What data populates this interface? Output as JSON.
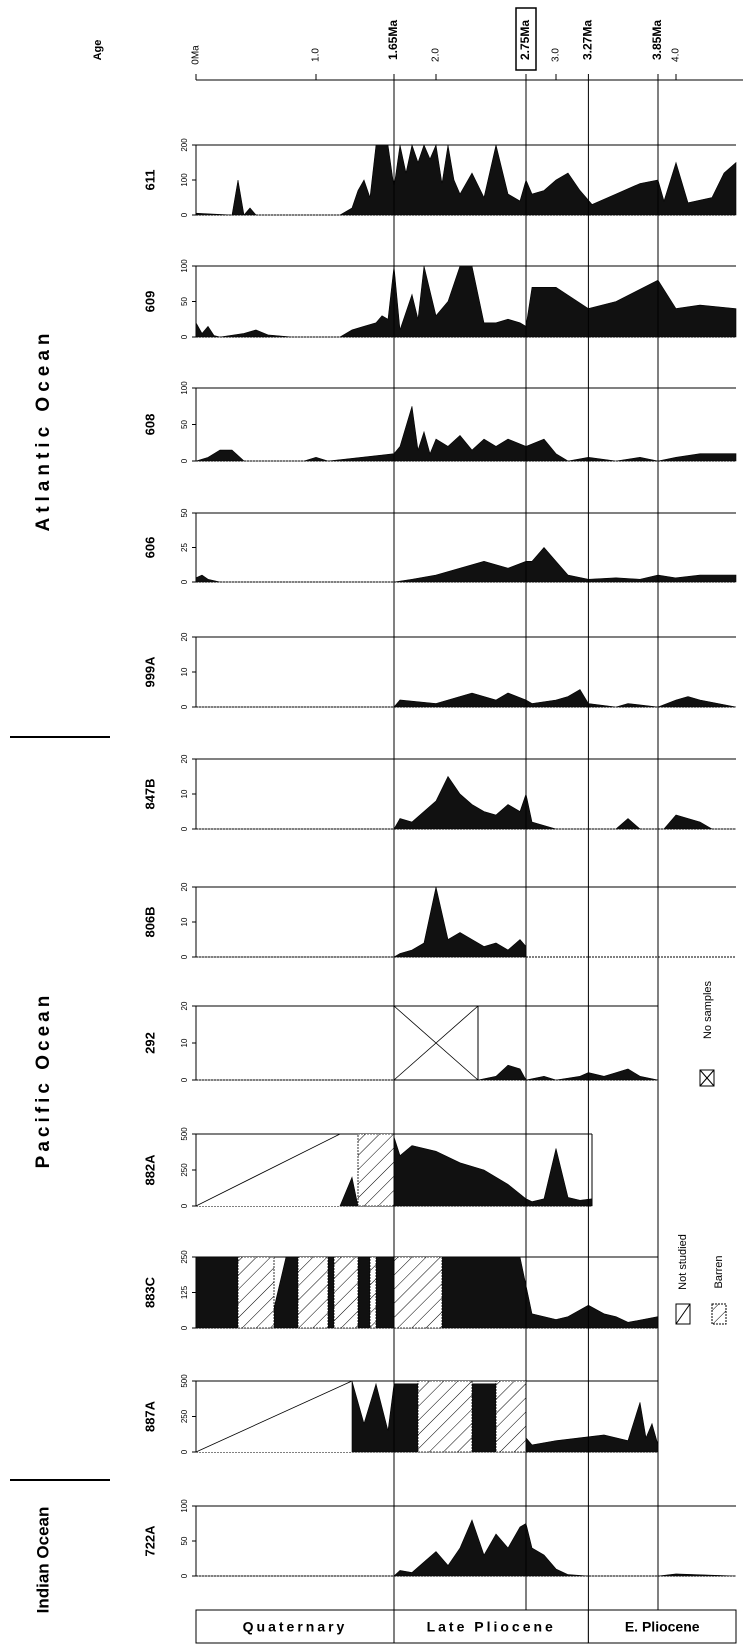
{
  "chart_data": {
    "type": "area",
    "age_axis": {
      "title": "Age",
      "ticks": [
        {
          "value": 0,
          "label": "0Ma"
        },
        {
          "value": 1.0,
          "label": "1.0"
        },
        {
          "value": 1.65,
          "label": "1.65Ma"
        },
        {
          "value": 2.0,
          "label": "2.0"
        },
        {
          "value": 2.75,
          "label": "2.75Ma",
          "boxed": true
        },
        {
          "value": 3.0,
          "label": "3.0"
        },
        {
          "value": 3.27,
          "label": "3.27Ma"
        },
        {
          "value": 3.85,
          "label": "3.85Ma"
        },
        {
          "value": 4.0,
          "label": "4.0"
        }
      ],
      "range": [
        0,
        4.5
      ],
      "boundaries": [
        1.65,
        2.75,
        3.27,
        3.85
      ]
    },
    "oceans": [
      {
        "name": "Atlantic Ocean",
        "sites": [
          "611",
          "609",
          "608",
          "606",
          "999A"
        ]
      },
      {
        "name": "Pacific Ocean",
        "sites": [
          "847B",
          "806B",
          "292",
          "882A",
          "883C",
          "887A"
        ]
      },
      {
        "name": "Indian Ocean",
        "sites": [
          "722A"
        ]
      }
    ],
    "epochs": [
      {
        "label": "Quaternary",
        "from": 0,
        "to": 1.65
      },
      {
        "label": "Late Pliocene",
        "from": 1.65,
        "to": 3.27
      },
      {
        "label": "E. Pliocene",
        "from": 3.27,
        "to": 4.5
      }
    ],
    "legend": {
      "no_samples": "No samples",
      "not_studied": "Not studied",
      "barren": "Barren"
    },
    "series": [
      {
        "site": "611",
        "ymax": 200,
        "yticks": [
          0,
          100,
          200
        ],
        "end": 4.5,
        "x": [
          0,
          0.3,
          0.35,
          0.4,
          0.45,
          0.5,
          1.2,
          1.3,
          1.35,
          1.4,
          1.45,
          1.5,
          1.55,
          1.6,
          1.65,
          1.7,
          1.75,
          1.8,
          1.85,
          1.9,
          1.95,
          2.0,
          2.05,
          2.1,
          2.15,
          2.2,
          2.3,
          2.4,
          2.5,
          2.6,
          2.7,
          2.75,
          2.8,
          2.9,
          3.0,
          3.1,
          3.2,
          3.3,
          3.5,
          3.7,
          3.85,
          3.9,
          4.0,
          4.1,
          4.3,
          4.4,
          4.5
        ],
        "y": [
          5,
          0,
          100,
          0,
          20,
          0,
          0,
          20,
          70,
          100,
          50,
          200,
          200,
          200,
          80,
          200,
          120,
          200,
          150,
          200,
          160,
          200,
          90,
          200,
          100,
          60,
          120,
          50,
          200,
          60,
          40,
          100,
          60,
          70,
          100,
          120,
          70,
          30,
          60,
          90,
          100,
          40,
          150,
          35,
          50,
          120,
          150
        ]
      },
      {
        "site": "609",
        "ymax": 100,
        "yticks": [
          0,
          50,
          100
        ],
        "end": 4.5,
        "x": [
          0,
          0.05,
          0.1,
          0.15,
          0.2,
          0.4,
          0.5,
          0.6,
          0.8,
          1.2,
          1.3,
          1.4,
          1.5,
          1.55,
          1.6,
          1.65,
          1.7,
          1.8,
          1.85,
          1.9,
          2.0,
          2.1,
          2.2,
          2.3,
          2.4,
          2.5,
          2.6,
          2.7,
          2.75,
          2.8,
          3.0,
          3.27,
          3.5,
          3.85,
          4.0,
          4.2,
          4.5
        ],
        "y": [
          20,
          5,
          15,
          2,
          0,
          5,
          10,
          3,
          0,
          0,
          10,
          15,
          20,
          30,
          25,
          100,
          10,
          60,
          25,
          100,
          30,
          50,
          100,
          100,
          20,
          20,
          25,
          20,
          15,
          70,
          70,
          40,
          50,
          80,
          40,
          45,
          40
        ]
      },
      {
        "site": "608",
        "ymax": 100,
        "yticks": [
          0,
          50,
          100
        ],
        "end": 4.5,
        "x": [
          0,
          0.1,
          0.2,
          0.3,
          0.4,
          0.9,
          1.0,
          1.1,
          1.65,
          1.7,
          1.8,
          1.85,
          1.9,
          1.95,
          2.0,
          2.1,
          2.2,
          2.3,
          2.4,
          2.5,
          2.6,
          2.75,
          2.9,
          3.0,
          3.1,
          3.27,
          3.5,
          3.7,
          3.85,
          4.0,
          4.2,
          4.5
        ],
        "y": [
          0,
          5,
          15,
          15,
          0,
          0,
          5,
          0,
          10,
          20,
          75,
          15,
          40,
          10,
          30,
          20,
          35,
          15,
          30,
          20,
          30,
          20,
          30,
          10,
          0,
          5,
          0,
          5,
          0,
          5,
          10,
          10
        ]
      },
      {
        "site": "606",
        "ymax": 50,
        "yticks": [
          0,
          25,
          50
        ],
        "end": 4.5,
        "x": [
          0,
          0.05,
          0.1,
          0.2,
          1.65,
          1.8,
          2.0,
          2.2,
          2.4,
          2.6,
          2.75,
          2.8,
          2.9,
          3.0,
          3.1,
          3.27,
          3.5,
          3.7,
          3.85,
          4.0,
          4.2,
          4.5
        ],
        "y": [
          3,
          5,
          2,
          0,
          0,
          2,
          5,
          10,
          15,
          10,
          15,
          15,
          25,
          15,
          5,
          2,
          3,
          2,
          5,
          3,
          5,
          5
        ]
      },
      {
        "site": "999A",
        "ymax": 20,
        "yticks": [
          0,
          10,
          20
        ],
        "end": 4.5,
        "x": [
          0,
          1.65,
          1.7,
          2.0,
          2.2,
          2.3,
          2.5,
          2.6,
          2.75,
          2.8,
          3.0,
          3.1,
          3.2,
          3.27,
          3.5,
          3.6,
          3.85,
          4.0,
          4.1,
          4.2,
          4.5
        ],
        "y": [
          0,
          0,
          2,
          1,
          3,
          4,
          2,
          4,
          2,
          1,
          2,
          3,
          5,
          1,
          0,
          1,
          0,
          2,
          3,
          2,
          0
        ]
      },
      {
        "site": "847B",
        "ymax": 20,
        "yticks": [
          0,
          10,
          20
        ],
        "end": 4.5,
        "x": [
          0,
          1.65,
          1.7,
          1.8,
          1.9,
          2.0,
          2.1,
          2.2,
          2.3,
          2.4,
          2.5,
          2.6,
          2.7,
          2.75,
          2.8,
          3.0,
          3.27,
          3.5,
          3.6,
          3.7,
          3.85,
          3.9,
          4.0,
          4.2,
          4.3,
          4.5
        ],
        "y": [
          0,
          0,
          3,
          2,
          5,
          8,
          15,
          10,
          7,
          5,
          4,
          7,
          5,
          10,
          2,
          0,
          0,
          0,
          3,
          0,
          0,
          0,
          4,
          2,
          0,
          0
        ]
      },
      {
        "site": "806B",
        "ymax": 20,
        "yticks": [
          0,
          10,
          20
        ],
        "end": 4.5,
        "x": [
          0,
          1.65,
          1.7,
          1.8,
          1.9,
          2.0,
          2.1,
          2.2,
          2.3,
          2.4,
          2.5,
          2.6,
          2.7,
          2.75
        ],
        "y": [
          0,
          0,
          1,
          2,
          4,
          20,
          5,
          7,
          5,
          3,
          4,
          2,
          5,
          3
        ]
      },
      {
        "site": "292",
        "ymax": 20,
        "yticks": [
          0,
          10,
          20
        ],
        "end": 3.85,
        "no_samples": [
          1.65,
          2.35
        ],
        "x": [
          0,
          1.65,
          2.35,
          2.5,
          2.6,
          2.7,
          2.75,
          2.9,
          3.0,
          3.2,
          3.27,
          3.4,
          3.5,
          3.6,
          3.7,
          3.85
        ],
        "y": [
          0,
          0,
          0,
          1,
          4,
          3,
          0,
          1,
          0,
          1,
          2,
          1,
          2,
          3,
          1,
          0
        ]
      },
      {
        "site": "882A",
        "ymax": 500,
        "yticks": [
          0,
          250,
          500
        ],
        "end": 3.3,
        "not_studied": [
          [
            0,
            1.2
          ]
        ],
        "barren": [
          [
            1.35,
            1.65
          ]
        ],
        "x": [
          1.2,
          1.3,
          1.35,
          1.65,
          1.7,
          1.8,
          2.0,
          2.2,
          2.4,
          2.6,
          2.75,
          2.8,
          2.9,
          3.0,
          3.1,
          3.2,
          3.3
        ],
        "y": [
          0,
          200,
          0,
          480,
          350,
          420,
          380,
          300,
          250,
          150,
          50,
          30,
          50,
          400,
          60,
          40,
          50
        ]
      },
      {
        "site": "883C",
        "ymax": 250,
        "yticks": [
          0,
          125,
          250
        ],
        "end": 3.85,
        "barren": [
          [
            0.35,
            0.65
          ],
          [
            0.85,
            1.1
          ],
          [
            1.15,
            1.35
          ],
          [
            1.45,
            1.5
          ],
          [
            1.65,
            2.05
          ]
        ],
        "x": [
          0,
          0.35,
          0.65,
          0.75,
          0.85,
          1.1,
          1.15,
          1.35,
          1.45,
          1.5,
          1.65,
          2.05,
          2.7,
          2.8,
          3.0,
          3.1,
          3.27,
          3.4,
          3.5,
          3.6,
          3.85
        ],
        "y": [
          250,
          250,
          70,
          250,
          250,
          250,
          250,
          250,
          250,
          250,
          250,
          250,
          250,
          50,
          30,
          40,
          80,
          50,
          40,
          20,
          40
        ]
      },
      {
        "site": "887A",
        "ymax": 500,
        "yticks": [
          0,
          250,
          500
        ],
        "end": 3.85,
        "not_studied": [
          [
            0,
            1.3
          ]
        ],
        "barren": [
          [
            1.85,
            2.3
          ],
          [
            2.5,
            2.75
          ]
        ],
        "x": [
          1.3,
          1.4,
          1.5,
          1.6,
          1.65,
          1.85,
          2.3,
          2.5,
          2.75,
          2.8,
          3.0,
          3.2,
          3.4,
          3.6,
          3.7,
          3.75,
          3.8,
          3.85
        ],
        "y": [
          500,
          200,
          480,
          150,
          480,
          480,
          480,
          480,
          100,
          50,
          80,
          100,
          120,
          80,
          350,
          100,
          200,
          50
        ]
      },
      {
        "site": "722A",
        "ymax": 100,
        "yticks": [
          0,
          50,
          100
        ],
        "end": 4.5,
        "x": [
          0,
          1.65,
          1.7,
          1.8,
          1.9,
          2.0,
          2.1,
          2.2,
          2.3,
          2.4,
          2.5,
          2.6,
          2.7,
          2.75,
          2.8,
          2.9,
          3.0,
          3.1,
          3.27,
          3.85,
          4.0,
          4.5
        ],
        "y": [
          0,
          0,
          8,
          5,
          20,
          35,
          15,
          40,
          80,
          30,
          60,
          40,
          70,
          75,
          40,
          30,
          10,
          2,
          0,
          0,
          3,
          0
        ]
      }
    ]
  }
}
